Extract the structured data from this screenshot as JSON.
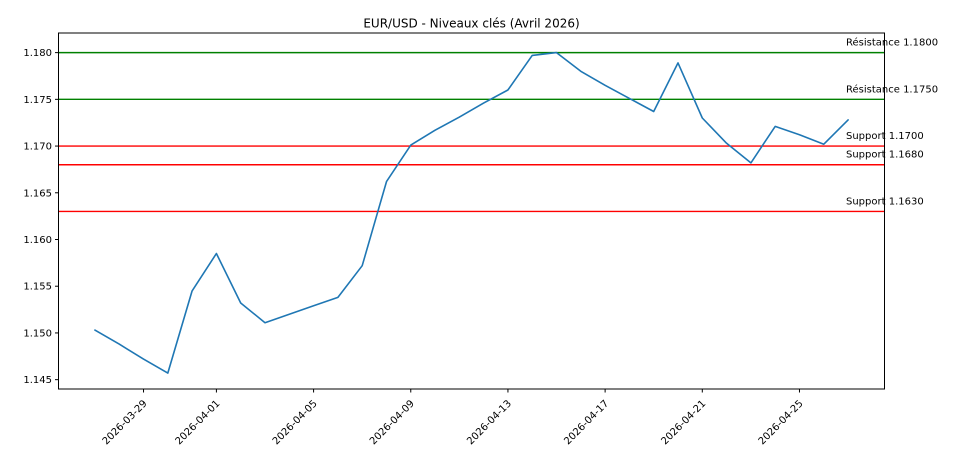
{
  "figure": {
    "title": "EUR/USD - Niveaux clés (Avril 2026)"
  },
  "chart_data": {
    "type": "line",
    "title": "EUR/USD - Niveaux clés (Avril 2026)",
    "xlabel": "",
    "ylabel": "",
    "grid": false,
    "legend": "none",
    "series_name": "EUR/USD",
    "line_color": "#1f77b4",
    "axis_color": "#000000",
    "background_color": "#ffffff",
    "x": [
      "2026-03-27",
      "2026-03-28",
      "2026-03-29",
      "2026-03-30",
      "2026-03-31",
      "2026-04-01",
      "2026-04-02",
      "2026-04-03",
      "2026-04-04",
      "2026-04-05",
      "2026-04-06",
      "2026-04-07",
      "2026-04-08",
      "2026-04-09",
      "2026-04-10",
      "2026-04-11",
      "2026-04-12",
      "2026-04-13",
      "2026-04-14",
      "2026-04-15",
      "2026-04-16",
      "2026-04-17",
      "2026-04-18",
      "2026-04-19",
      "2026-04-20",
      "2026-04-21",
      "2026-04-22",
      "2026-04-23",
      "2026-04-24",
      "2026-04-25",
      "2026-04-26",
      "2026-04-27"
    ],
    "values": [
      1.1503,
      1.1488,
      1.1472,
      1.1457,
      1.1545,
      1.1585,
      1.1532,
      1.1511,
      1.152,
      1.1529,
      1.1538,
      1.1572,
      1.1662,
      1.1701,
      1.1717,
      1.1731,
      1.1746,
      1.176,
      1.1797,
      1.18,
      1.178,
      1.1765,
      1.1751,
      1.1737,
      1.1789,
      1.173,
      1.1703,
      1.1682,
      1.1721,
      1.1712,
      1.1702,
      1.1728
    ],
    "xlim": [
      "2026-03-25T12:00:00Z",
      "2026-04-28T12:00:00Z"
    ],
    "ylim": [
      1.144,
      1.1821
    ],
    "yticks": {
      "values": [
        1.145,
        1.15,
        1.155,
        1.16,
        1.165,
        1.17,
        1.175,
        1.18
      ],
      "labels": [
        "1.145",
        "1.150",
        "1.155",
        "1.160",
        "1.165",
        "1.170",
        "1.175",
        "1.180"
      ]
    },
    "xticks": {
      "values": [
        "2026-03-29",
        "2026-04-01",
        "2026-04-05",
        "2026-04-09",
        "2026-04-13",
        "2026-04-17",
        "2026-04-21",
        "2026-04-25"
      ],
      "labels": [
        "2026-03-29",
        "2026-04-01",
        "2026-04-05",
        "2026-04-09",
        "2026-04-13",
        "2026-04-17",
        "2026-04-21",
        "2026-04-25"
      ]
    },
    "levels": [
      {
        "kind": "resistance",
        "label": "Résistance 1.1800",
        "value": 1.18,
        "color": "#008000"
      },
      {
        "kind": "resistance",
        "label": "Résistance 1.1750",
        "value": 1.175,
        "color": "#008000"
      },
      {
        "kind": "support",
        "label": "Support 1.1700",
        "value": 1.17,
        "color": "#ff0000"
      },
      {
        "kind": "support",
        "label": "Support 1.1680",
        "value": 1.168,
        "color": "#ff0000"
      },
      {
        "kind": "support",
        "label": "Support 1.1630",
        "value": 1.163,
        "color": "#ff0000"
      }
    ]
  }
}
